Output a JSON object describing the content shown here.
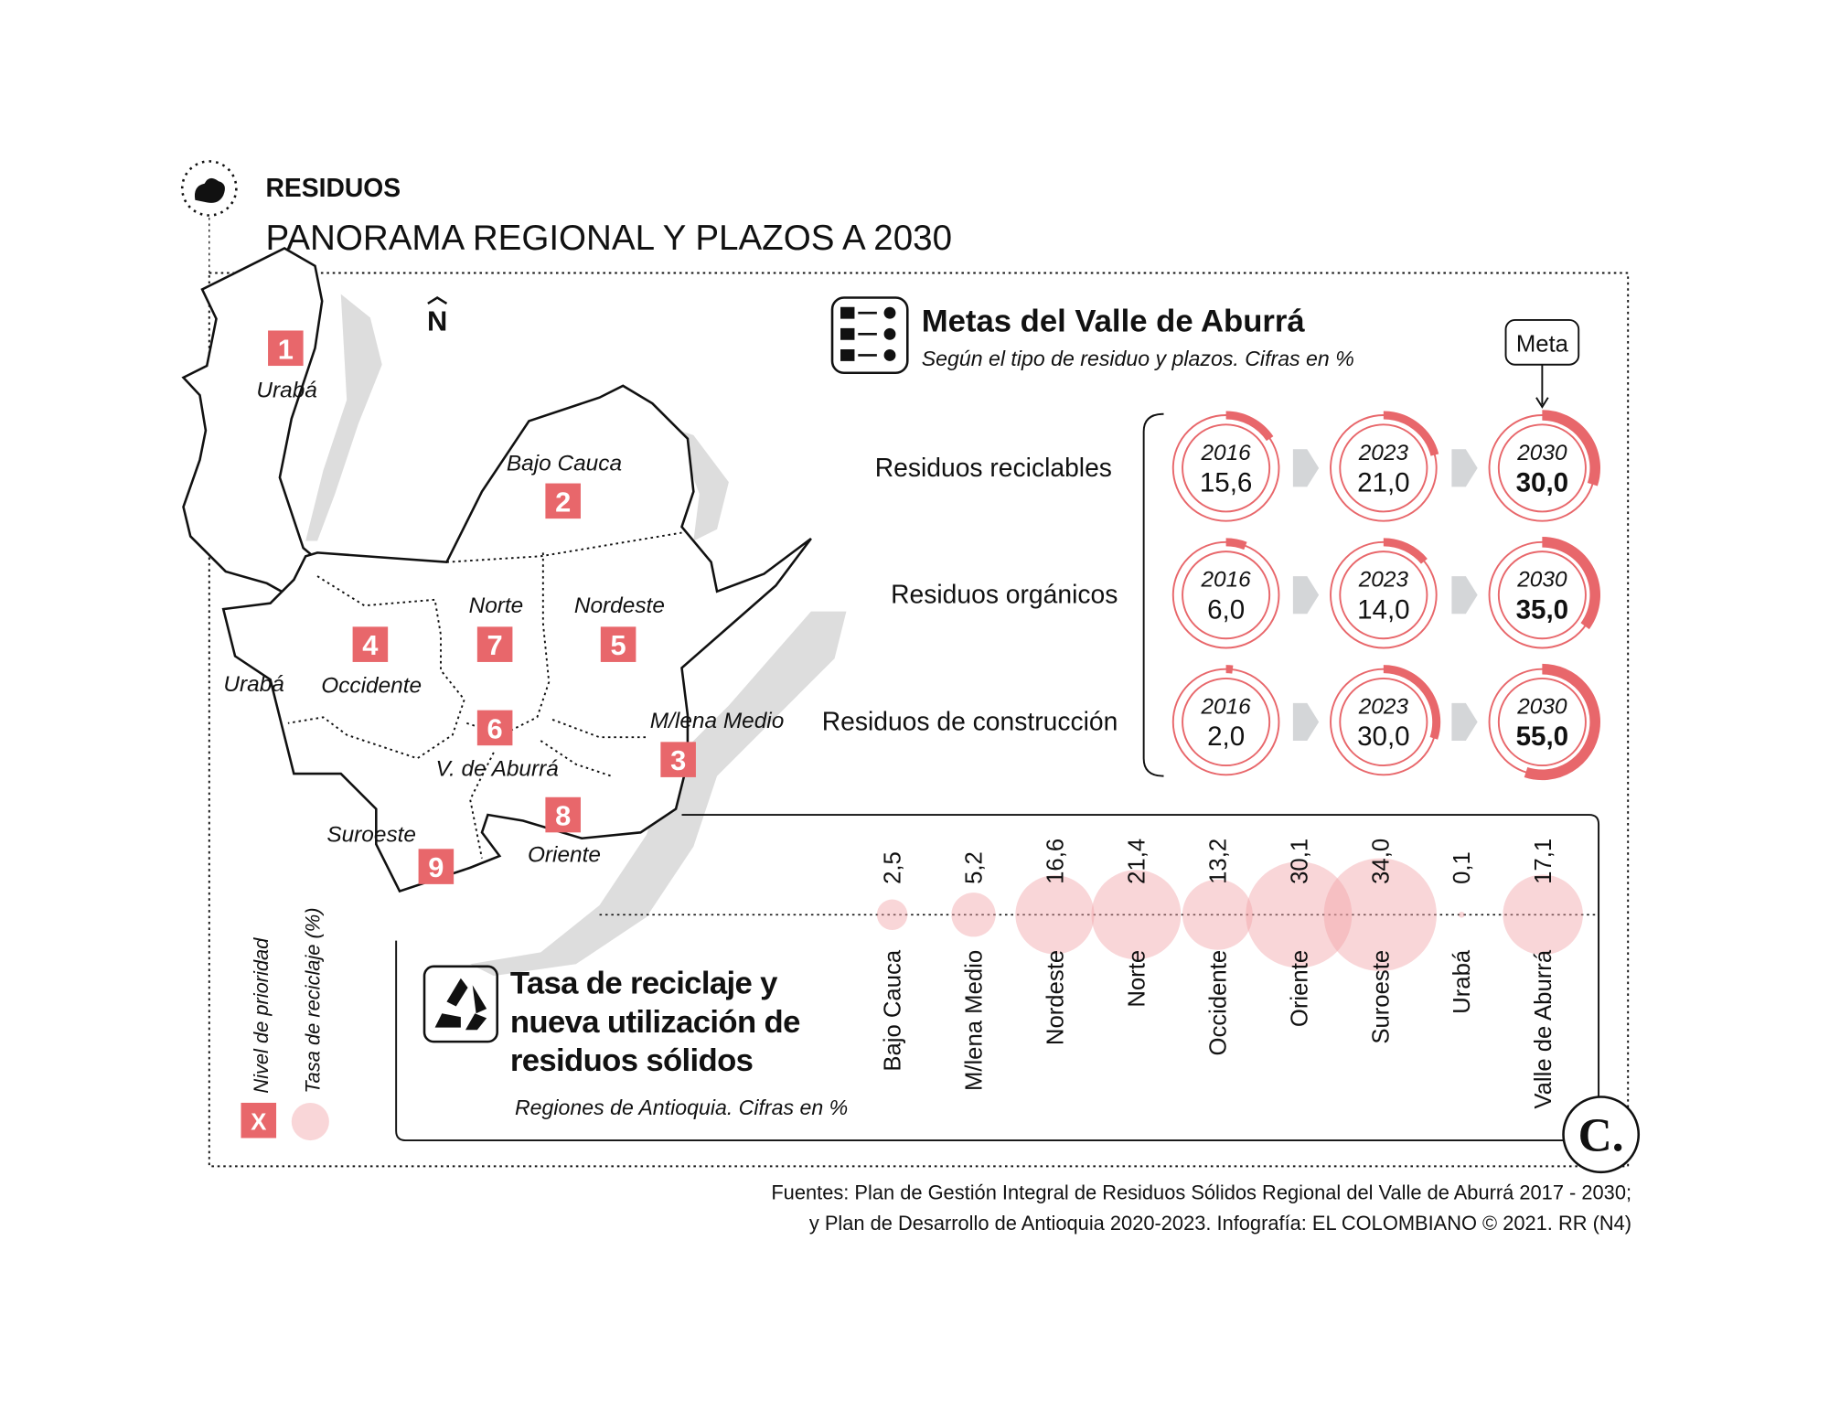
{
  "header": {
    "section": "RESIDUOS",
    "title": "PANORAMA REGIONAL Y PLAZOS A 2030"
  },
  "map": {
    "north": "N",
    "regions": [
      {
        "number": 1,
        "labels": [
          "Urabá",
          "Urabá"
        ]
      },
      {
        "number": 2,
        "labels": [
          "Bajo Cauca"
        ]
      },
      {
        "number": 3,
        "labels": [
          "M/lena Medio"
        ]
      },
      {
        "number": 4,
        "labels": [
          "Occidente"
        ]
      },
      {
        "number": 5,
        "labels": [
          "Nordeste"
        ]
      },
      {
        "number": 6,
        "labels": [
          "V. de Aburrá"
        ]
      },
      {
        "number": 7,
        "labels": [
          "Norte"
        ]
      },
      {
        "number": 8,
        "labels": [
          "Oriente"
        ]
      },
      {
        "number": 9,
        "labels": [
          "Suroeste"
        ]
      }
    ]
  },
  "legend": {
    "priority": "Nivel de prioridad",
    "rate": "Tasa de reciclaje (%)",
    "priority_symbol": "X"
  },
  "chart_data": [
    {
      "type": "ring",
      "title": "Metas del Valle de Aburrá",
      "subtitle": "Según el tipo de residuo y plazos. Cifras en %",
      "annotation": "Meta",
      "categories": [
        "Residuos reciclables",
        "Residuos orgánicos",
        "Residuos de construcción"
      ],
      "color": "#e8676b",
      "series": [
        {
          "name": "2016",
          "values": [
            15.6,
            6.0,
            2.0
          ],
          "value_labels": [
            "15,6",
            "6,0",
            "2,0"
          ]
        },
        {
          "name": "2023",
          "values": [
            21.0,
            14.0,
            30.0
          ],
          "value_labels": [
            "21,0",
            "14,0",
            "30,0"
          ]
        },
        {
          "name": "2030",
          "values": [
            30.0,
            35.0,
            55.0
          ],
          "value_labels": [
            "30,0",
            "35,0",
            "55,0"
          ]
        }
      ]
    },
    {
      "type": "bubble",
      "title": "Tasa de reciclaje y nueva utilización de residuos sólidos",
      "subtitle": "Regiones de Antioquia. Cifras en %",
      "categories": [
        "Bajo Cauca",
        "M/lena Medio",
        "Nordeste",
        "Norte",
        "Occidente",
        "Oriente",
        "Suroeste",
        "Urabá",
        "Valle de Aburrá"
      ],
      "values": [
        2.5,
        5.2,
        16.6,
        21.4,
        13.2,
        30.1,
        34.0,
        0.1,
        17.1
      ],
      "value_labels": [
        "2,5",
        "5,2",
        "16,6",
        "21,4",
        "13,2",
        "30,1",
        "34,0",
        "0,1",
        "17,1"
      ],
      "color": "#f2a5a8"
    }
  ],
  "footer": {
    "source": [
      "Fuentes: Plan de Gestión Integral de Residuos Sólidos Regional del Valle de Aburrá 2017 - 2030;",
      "y Plan de Desarrollo de Antioquia 2020-2023. Infografía: EL COLOMBIANO © 2021. RR (N4)"
    ]
  },
  "logo": "C."
}
